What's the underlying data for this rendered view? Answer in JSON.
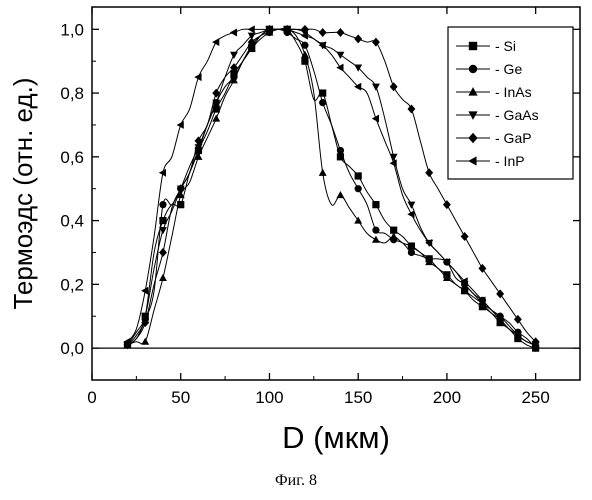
{
  "caption": "Фиг. 8",
  "chart_data": {
    "type": "line",
    "xlabel": "D (мкм)",
    "ylabel": "Термоэдс (отн.  ед.)",
    "xlim": [
      0,
      275
    ],
    "ylim": [
      -0.1,
      1.07
    ],
    "xticks": [
      0,
      50,
      100,
      150,
      200,
      250
    ],
    "xtick_labels": [
      "0",
      "50",
      "100",
      "150",
      "200",
      "250"
    ],
    "yticks": [
      0.0,
      0.2,
      0.4,
      0.6,
      0.8,
      1.0
    ],
    "ytick_labels": [
      "0,0",
      "0,2",
      "0,4",
      "0,6",
      "0,8",
      "1,0"
    ],
    "grid": false,
    "legend_position": "top-right",
    "reference_line_y": 0,
    "series": [
      {
        "name": "- Si",
        "marker": "square",
        "x": [
          20,
          25,
          30,
          35,
          40,
          45,
          50,
          55,
          60,
          65,
          70,
          75,
          80,
          85,
          90,
          95,
          100,
          105,
          110,
          115,
          120,
          125,
          130,
          135,
          140,
          145,
          150,
          155,
          160,
          165,
          170,
          175,
          180,
          185,
          190,
          195,
          200,
          205,
          210,
          215,
          220,
          225,
          230,
          235,
          240,
          245,
          250
        ],
        "y": [
          0.01,
          0.04,
          0.1,
          0.3,
          0.4,
          0.45,
          0.45,
          0.55,
          0.62,
          0.68,
          0.75,
          0.8,
          0.86,
          0.9,
          0.94,
          0.98,
          1.0,
          1.0,
          1.0,
          0.96,
          0.9,
          0.78,
          0.8,
          0.7,
          0.6,
          0.57,
          0.54,
          0.49,
          0.45,
          0.4,
          0.37,
          0.35,
          0.32,
          0.3,
          0.28,
          0.25,
          0.23,
          0.2,
          0.18,
          0.15,
          0.13,
          0.11,
          0.08,
          0.06,
          0.03,
          0.01,
          0.0
        ]
      },
      {
        "name": "- Ge",
        "marker": "circle",
        "x": [
          20,
          25,
          30,
          35,
          40,
          45,
          50,
          55,
          60,
          65,
          70,
          75,
          80,
          85,
          90,
          95,
          100,
          105,
          110,
          115,
          120,
          125,
          130,
          135,
          140,
          145,
          150,
          155,
          160,
          165,
          170,
          175,
          180,
          185,
          190,
          195,
          200,
          205,
          210,
          215,
          220,
          225,
          230,
          235,
          240,
          245,
          250
        ],
        "y": [
          0.01,
          0.03,
          0.09,
          0.18,
          0.45,
          0.45,
          0.5,
          0.55,
          0.62,
          0.7,
          0.77,
          0.82,
          0.85,
          0.9,
          0.95,
          0.98,
          0.99,
          1.0,
          0.99,
          0.97,
          0.95,
          0.87,
          0.77,
          0.7,
          0.62,
          0.55,
          0.5,
          0.45,
          0.37,
          0.36,
          0.34,
          0.33,
          0.3,
          0.29,
          0.28,
          0.28,
          0.27,
          0.22,
          0.2,
          0.17,
          0.15,
          0.12,
          0.1,
          0.08,
          0.05,
          0.03,
          0.0
        ]
      },
      {
        "name": "- InAs",
        "marker": "triangle-up",
        "x": [
          20,
          25,
          30,
          35,
          40,
          45,
          50,
          55,
          60,
          65,
          70,
          75,
          80,
          85,
          90,
          95,
          100,
          105,
          110,
          115,
          120,
          125,
          130,
          135,
          140,
          145,
          150,
          155,
          160,
          165,
          170,
          175,
          180,
          185,
          190,
          195,
          200,
          205,
          210,
          215,
          220,
          225,
          230,
          235,
          240,
          245,
          250
        ],
        "y": [
          0.01,
          0.02,
          0.02,
          0.12,
          0.22,
          0.35,
          0.48,
          0.52,
          0.6,
          0.66,
          0.72,
          0.79,
          0.84,
          0.9,
          0.94,
          0.97,
          0.99,
          1.0,
          1.0,
          0.98,
          0.92,
          0.8,
          0.55,
          0.45,
          0.48,
          0.44,
          0.4,
          0.36,
          0.34,
          0.33,
          0.35,
          0.33,
          0.32,
          0.3,
          0.27,
          0.25,
          0.22,
          0.2,
          0.18,
          0.16,
          0.14,
          0.12,
          0.1,
          0.07,
          0.04,
          0.02,
          0.01
        ]
      },
      {
        "name": "- GaAs",
        "marker": "triangle-down",
        "x": [
          20,
          25,
          30,
          35,
          40,
          45,
          50,
          55,
          60,
          65,
          70,
          75,
          80,
          85,
          90,
          95,
          100,
          105,
          110,
          115,
          120,
          125,
          130,
          135,
          140,
          145,
          150,
          155,
          160,
          165,
          170,
          175,
          180,
          185,
          190,
          195,
          200,
          205,
          210,
          215,
          220,
          225,
          230,
          235,
          240,
          245,
          250
        ],
        "y": [
          0.01,
          0.05,
          0.1,
          0.25,
          0.37,
          0.43,
          0.5,
          0.57,
          0.63,
          0.7,
          0.77,
          0.85,
          0.92,
          0.95,
          0.98,
          0.99,
          1.0,
          1.0,
          1.0,
          1.0,
          0.99,
          0.97,
          0.95,
          0.94,
          0.92,
          0.9,
          0.88,
          0.85,
          0.82,
          0.72,
          0.6,
          0.5,
          0.45,
          0.38,
          0.33,
          0.3,
          0.27,
          0.24,
          0.2,
          0.17,
          0.14,
          0.11,
          0.09,
          0.06,
          0.04,
          0.02,
          0.01
        ]
      },
      {
        "name": "- GaP",
        "marker": "diamond",
        "x": [
          20,
          25,
          30,
          35,
          40,
          45,
          50,
          55,
          60,
          65,
          70,
          75,
          80,
          85,
          90,
          95,
          100,
          105,
          110,
          115,
          120,
          125,
          130,
          135,
          140,
          145,
          150,
          155,
          160,
          165,
          170,
          175,
          180,
          185,
          190,
          195,
          200,
          205,
          210,
          215,
          220,
          225,
          230,
          235,
          240,
          245,
          250
        ],
        "y": [
          0.01,
          0.03,
          0.08,
          0.2,
          0.3,
          0.44,
          0.5,
          0.55,
          0.65,
          0.7,
          0.8,
          0.85,
          0.88,
          0.92,
          0.96,
          0.98,
          1.0,
          1.0,
          1.0,
          1.0,
          1.0,
          1.0,
          0.99,
          0.99,
          0.99,
          0.98,
          0.97,
          0.96,
          0.96,
          0.9,
          0.82,
          0.78,
          0.75,
          0.65,
          0.55,
          0.5,
          0.45,
          0.4,
          0.35,
          0.3,
          0.25,
          0.21,
          0.17,
          0.13,
          0.09,
          0.05,
          0.02
        ]
      },
      {
        "name": "- InP",
        "marker": "triangle-left",
        "x": [
          20,
          25,
          30,
          35,
          40,
          45,
          50,
          55,
          60,
          65,
          70,
          75,
          80,
          85,
          90,
          95,
          100,
          105,
          110,
          115,
          120,
          125,
          130,
          135,
          140,
          145,
          150,
          155,
          160,
          165,
          170,
          175,
          180,
          185,
          190,
          195,
          200,
          205,
          210,
          215,
          220,
          225,
          230,
          235,
          240,
          245,
          250
        ],
        "y": [
          0.02,
          0.06,
          0.18,
          0.35,
          0.55,
          0.6,
          0.7,
          0.75,
          0.85,
          0.9,
          0.96,
          0.98,
          0.99,
          1.0,
          1.0,
          1.0,
          1.0,
          1.0,
          1.0,
          0.99,
          0.98,
          0.97,
          0.95,
          0.92,
          0.88,
          0.85,
          0.82,
          0.8,
          0.72,
          0.65,
          0.58,
          0.48,
          0.42,
          0.37,
          0.33,
          0.3,
          0.27,
          0.24,
          0.21,
          0.18,
          0.15,
          0.12,
          0.09,
          0.06,
          0.04,
          0.02,
          0.01
        ]
      }
    ]
  }
}
